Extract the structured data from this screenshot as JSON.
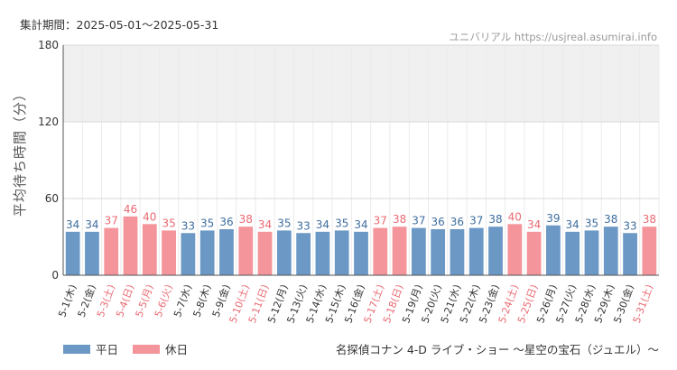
{
  "header": {
    "period": "集計期間：2025-05-01～2025-05-31",
    "source": "ユニバリアル  https://usjreal.asumirai.info"
  },
  "footer": {
    "attraction": "名探偵コナン 4-D ライブ・ショー ～星空の宝石（ジュエル）～"
  },
  "colors": {
    "weekday": "#6b98c5",
    "holiday": "#f4949b",
    "weekday_text": "#3f6e9f",
    "holiday_text": "#ea6a73",
    "band": "#f0f0f0"
  },
  "chart_data": {
    "type": "bar",
    "ylabel": "平均待ち時間（分）",
    "ylim": [
      0,
      180
    ],
    "yticks": [
      0,
      60,
      120,
      180
    ],
    "shaded_band": [
      120,
      180
    ],
    "grid": true,
    "legend_position": "bottom-left",
    "legend": [
      {
        "name": "平日",
        "kind": "weekday"
      },
      {
        "name": "休日",
        "kind": "holiday"
      }
    ],
    "categories": [
      "5-1(木)",
      "5-2(金)",
      "5-3(土)",
      "5-4(日)",
      "5-5(月)",
      "5-6(火)",
      "5-7(水)",
      "5-8(木)",
      "5-9(金)",
      "5-10(土)",
      "5-11(日)",
      "5-12(月)",
      "5-13(火)",
      "5-14(水)",
      "5-15(木)",
      "5-16(金)",
      "5-17(土)",
      "5-18(日)",
      "5-19(月)",
      "5-20(火)",
      "5-21(水)",
      "5-22(木)",
      "5-23(金)",
      "5-24(土)",
      "5-25(日)",
      "5-26(月)",
      "5-27(火)",
      "5-28(水)",
      "5-29(木)",
      "5-30(金)",
      "5-31(土)"
    ],
    "values": [
      34,
      34,
      37,
      46,
      40,
      35,
      33,
      35,
      36,
      38,
      34,
      35,
      33,
      34,
      35,
      34,
      37,
      38,
      37,
      36,
      36,
      37,
      38,
      40,
      34,
      39,
      34,
      35,
      38,
      33,
      38
    ],
    "holiday": [
      false,
      false,
      true,
      true,
      true,
      true,
      false,
      false,
      false,
      true,
      true,
      false,
      false,
      false,
      false,
      false,
      true,
      true,
      false,
      false,
      false,
      false,
      false,
      true,
      true,
      false,
      false,
      false,
      false,
      false,
      true
    ]
  }
}
